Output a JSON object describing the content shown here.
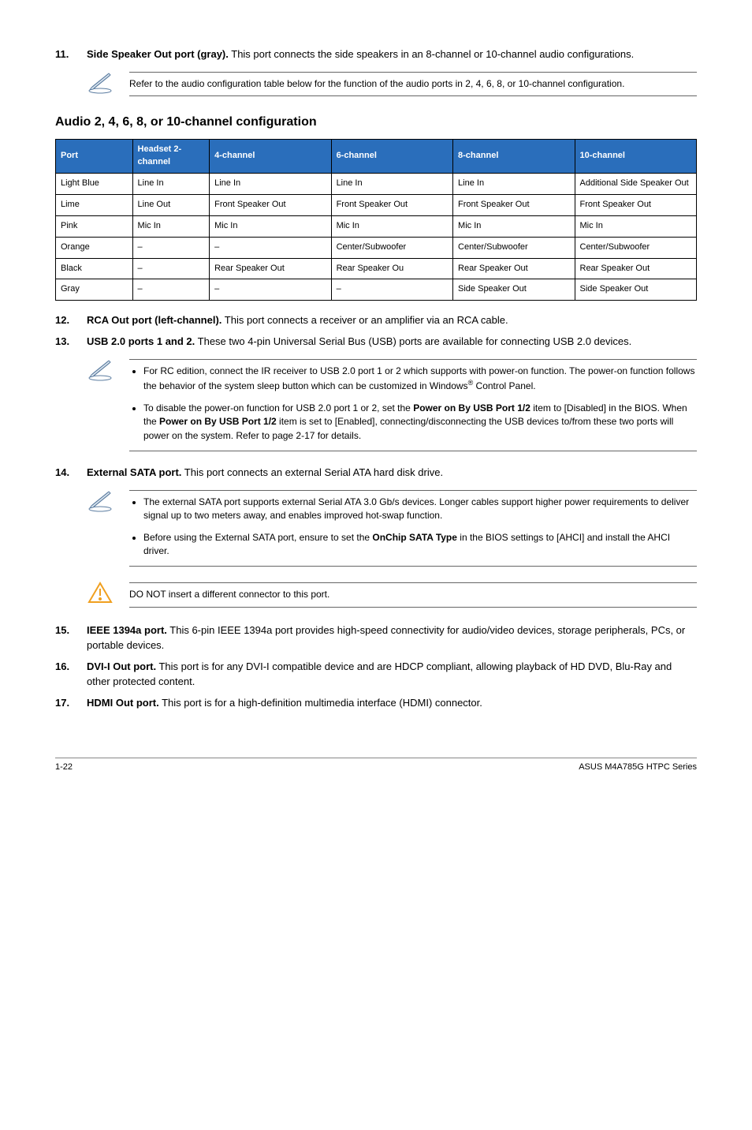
{
  "items": {
    "11": {
      "num": "11.",
      "title": "Side Speaker Out port (gray).",
      "text": " This port connects the side speakers in an 8-channel or 10-channel audio configurations."
    },
    "12": {
      "num": "12.",
      "title": "RCA Out port (left-channel).",
      "text": " This port connects a receiver or an amplifier via an RCA cable."
    },
    "13": {
      "num": "13.",
      "title": "USB 2.0 ports 1 and 2.",
      "text": " These two 4-pin Universal Serial Bus (USB) ports are available for connecting USB 2.0 devices."
    },
    "14": {
      "num": "14.",
      "title": "External SATA port.",
      "text": " This port connects an external Serial ATA hard disk drive."
    },
    "15": {
      "num": "15.",
      "title": "IEEE 1394a port.",
      "text": " This 6-pin IEEE 1394a port provides high-speed connectivity for audio/video devices, storage peripherals, PCs, or portable devices."
    },
    "16": {
      "num": "16.",
      "title": "DVI-I Out port.",
      "text": " This port is for any DVI-I compatible device and are HDCP compliant, allowing playback of HD DVD, Blu-Ray and other protected content."
    },
    "17": {
      "num": "17.",
      "title": "HDMI Out port.",
      "text": " This port is for a high-definition multimedia interface (HDMI) connector."
    }
  },
  "notes": {
    "n1": "Refer to the audio configuration table below for the function of the audio ports in 2, 4, 6, 8, or 10-channel configuration.",
    "n2a_pre": "For RC edition, connect the IR receiver to USB 2.0 port 1 or 2 which supports with power-on function. The power-on function follows the behavior of the system sleep button which can be customized in Windows",
    "n2a_post": " Control Panel.",
    "n2b_1": "To disable the power-on function for USB 2.0 port 1 or 2, set the ",
    "n2b_b1": "Power on By USB Port 1/2",
    "n2b_2": " item to [Disabled] in the BIOS. When the ",
    "n2b_b2": "Power on By USB Port 1/2",
    "n2b_3": " item is set to [Enabled], connecting/disconnecting the USB devices to/from these two ports will power on the system. Refer to page 2-17 for details.",
    "n3a": "The external SATA port supports external Serial ATA 3.0 Gb/s devices. Longer cables support higher power requirements to deliver signal up to two meters away, and enables improved hot-swap function.",
    "n3b_1": "Before using the External SATA port, ensure to set the ",
    "n3b_b": "OnChip SATA Type",
    "n3b_2": " in the BIOS settings to [AHCI] and install the AHCI driver.",
    "n4": "DO NOT insert a different connector to this port."
  },
  "section_title": "Audio 2, 4, 6, 8, or 10-channel configuration",
  "table": {
    "header_bg": "#2a6ebb",
    "header_color": "#ffffff",
    "columns": [
      "Port",
      "Headset 2-channel",
      "4-channel",
      "6-channel",
      "8-channel",
      "10-channel"
    ],
    "rows": [
      [
        "Light Blue",
        "Line In",
        "Line In",
        "Line In",
        "Line In",
        "Additional Side Speaker Out"
      ],
      [
        "Lime",
        "Line Out",
        "Front Speaker Out",
        "Front Speaker Out",
        "Front Speaker Out",
        "Front Speaker Out"
      ],
      [
        "Pink",
        "Mic In",
        "Mic In",
        "Mic In",
        "Mic In",
        "Mic In"
      ],
      [
        "Orange",
        "–",
        "–",
        "Center/Subwoofer",
        "Center/Subwoofer",
        "Center/Subwoofer"
      ],
      [
        "Black",
        "–",
        "Rear Speaker Out",
        "Rear Speaker Ou",
        "Rear Speaker Out",
        "Rear Speaker Out"
      ],
      [
        "Gray",
        "–",
        "–",
        "–",
        "Side Speaker Out",
        "Side Speaker Out"
      ]
    ],
    "col_widths": [
      "12%",
      "12%",
      "19%",
      "19%",
      "19%",
      "19%"
    ]
  },
  "footer": {
    "left": "1-22",
    "right": "ASUS M4A785G HTPC Series"
  },
  "registered": "®"
}
